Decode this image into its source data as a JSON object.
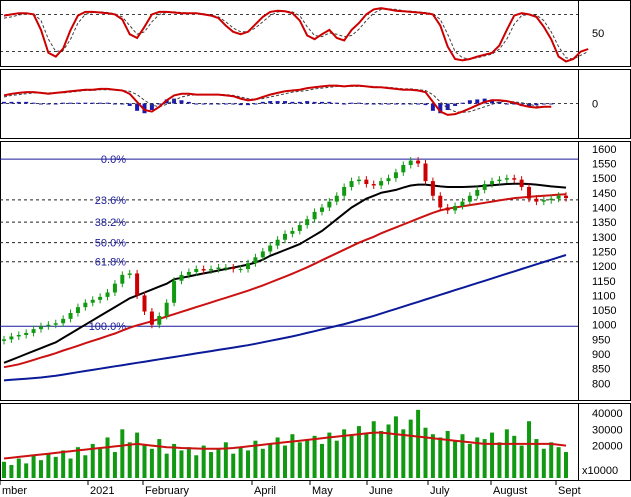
{
  "colors": {
    "background": "#ffffff",
    "grid": "#000000",
    "stoch_line": "#cc0000",
    "stoch_signal": "#404040",
    "macd_line": "#cc0000",
    "macd_hist": "#1a1ab0",
    "candle_up": "#119911",
    "candle_down": "#cc0000",
    "ma_short": "#000000",
    "ma_mid": "#cc1111",
    "ma_long": "#0a1a99",
    "fib": "#1a1a9a",
    "volume_bar": "#119911",
    "volume_ma": "#cc1111"
  },
  "chart_data": {
    "type": "line",
    "panels": {
      "stochastic": {
        "ticks": [
          50
        ],
        "levels": [
          20,
          80
        ],
        "ylim": [
          0,
          100
        ],
        "k": [
          78,
          80,
          82,
          82,
          80,
          55,
          18,
          12,
          25,
          55,
          78,
          84,
          84,
          83,
          82,
          80,
          72,
          48,
          42,
          60,
          80,
          84,
          84,
          83,
          82,
          82,
          82,
          80,
          78,
          74,
          62,
          52,
          48,
          52,
          64,
          76,
          84,
          86,
          85,
          82,
          70,
          46,
          40,
          48,
          55,
          42,
          38,
          55,
          66,
          80,
          88,
          90,
          88,
          86,
          85,
          84,
          83,
          82,
          80,
          62,
          28,
          8,
          6,
          8,
          12,
          15,
          18,
          30,
          55,
          78,
          82,
          80,
          76,
          60,
          40,
          12,
          4,
          8,
          20,
          24
        ],
        "d": [
          74,
          76,
          79,
          81,
          81,
          70,
          40,
          20,
          22,
          40,
          66,
          80,
          83,
          84,
          83,
          81,
          76,
          62,
          48,
          52,
          68,
          80,
          83,
          84,
          83,
          82,
          82,
          81,
          79,
          76,
          68,
          58,
          52,
          52,
          58,
          68,
          78,
          84,
          85,
          84,
          78,
          60,
          46,
          44,
          50,
          48,
          44,
          46,
          56,
          70,
          82,
          88,
          89,
          88,
          86,
          85,
          84,
          83,
          81,
          72,
          48,
          20,
          10,
          8,
          10,
          13,
          16,
          24,
          40,
          64,
          78,
          80,
          79,
          70,
          52,
          28,
          10,
          8,
          14,
          20
        ]
      },
      "macd": {
        "ticks": [
          0
        ],
        "ylim": [
          -40,
          40
        ],
        "line": [
          10,
          12,
          13,
          14,
          14,
          13,
          12,
          13,
          14,
          15,
          16,
          17,
          17,
          18,
          18,
          17,
          16,
          12,
          2,
          -8,
          -10,
          -4,
          4,
          10,
          12,
          12,
          11,
          11,
          11,
          11,
          10,
          9,
          6,
          4,
          5,
          8,
          11,
          13,
          15,
          16,
          17,
          19,
          20,
          21,
          22,
          22,
          21,
          22,
          22,
          21,
          20,
          20,
          19,
          18,
          17,
          17,
          16,
          14,
          2,
          -10,
          -14,
          -13,
          -10,
          -6,
          -2,
          2,
          4,
          4,
          3,
          1,
          -2,
          -4,
          -5,
          -4,
          -4
        ],
        "signal": [
          8,
          10,
          11,
          12,
          13,
          13,
          13,
          13,
          13,
          14,
          15,
          16,
          16,
          17,
          17,
          17,
          16,
          15,
          11,
          4,
          -2,
          -4,
          -1,
          4,
          8,
          10,
          11,
          11,
          11,
          11,
          11,
          10,
          8,
          6,
          5,
          6,
          8,
          10,
          12,
          14,
          15,
          16,
          18,
          19,
          20,
          21,
          21,
          21,
          21,
          21,
          21,
          20,
          20,
          19,
          18,
          18,
          17,
          16,
          11,
          2,
          -6,
          -10,
          -11,
          -10,
          -7,
          -4,
          -1,
          2,
          3,
          2,
          1,
          -1,
          -3,
          -4,
          -4
        ],
        "hist": [
          2,
          2,
          2,
          2,
          1,
          0,
          -1,
          0,
          1,
          1,
          1,
          1,
          1,
          1,
          1,
          0,
          0,
          -3,
          -9,
          -12,
          -8,
          0,
          5,
          6,
          4,
          2,
          0,
          0,
          0,
          0,
          -1,
          -1,
          -2,
          -2,
          0,
          2,
          3,
          3,
          3,
          2,
          2,
          3,
          2,
          2,
          2,
          1,
          0,
          1,
          1,
          0,
          -1,
          0,
          -1,
          -1,
          -1,
          -1,
          -1,
          -2,
          -9,
          -12,
          -8,
          -3,
          1,
          4,
          5,
          6,
          5,
          2,
          0,
          -1,
          -3,
          -3,
          -2,
          0,
          0
        ]
      },
      "price": {
        "ylim": [
          750,
          1620
        ],
        "ticks": [
          800,
          850,
          900,
          950,
          1000,
          1050,
          1100,
          1150,
          1200,
          1250,
          1300,
          1350,
          1400,
          1450,
          1500,
          1550,
          1600
        ],
        "fib_levels": [
          {
            "label": "0.0%",
            "value": 1565,
            "style": "solid"
          },
          {
            "label": "23.6%",
            "value": 1426,
            "style": "dashed"
          },
          {
            "label": "38.2%",
            "value": 1350,
            "style": "dashed"
          },
          {
            "label": "50.0%",
            "value": 1280,
            "style": "dashed"
          },
          {
            "label": "61.8%",
            "value": 1215,
            "style": "dashed"
          },
          {
            "label": "100.0%",
            "value": 995,
            "style": "solid"
          }
        ],
        "close": [
          950,
          960,
          965,
          972,
          985,
          995,
          1000,
          1005,
          1020,
          1040,
          1060,
          1075,
          1085,
          1095,
          1110,
          1140,
          1170,
          1175,
          1100,
          1045,
          1000,
          1030,
          1075,
          1150,
          1170,
          1180,
          1190,
          1185,
          1190,
          1195,
          1195,
          1190,
          1190,
          1210,
          1230,
          1250,
          1270,
          1290,
          1310,
          1320,
          1340,
          1360,
          1385,
          1400,
          1420,
          1440,
          1470,
          1490,
          1495,
          1480,
          1475,
          1490,
          1500,
          1520,
          1545,
          1560,
          1550,
          1490,
          1440,
          1400,
          1390,
          1405,
          1420,
          1440,
          1460,
          1480,
          1490,
          1495,
          1500,
          1495,
          1470,
          1430,
          1420,
          1425,
          1430,
          1440,
          1432
        ],
        "ma_short": [
          870,
          880,
          890,
          900,
          910,
          920,
          930,
          940,
          955,
          970,
          985,
          1000,
          1015,
          1030,
          1045,
          1060,
          1075,
          1090,
          1100,
          1110,
          1120,
          1130,
          1140,
          1155,
          1160,
          1165,
          1170,
          1175,
          1180,
          1185,
          1190,
          1195,
          1200,
          1205,
          1212,
          1222,
          1235,
          1245,
          1255,
          1265,
          1275,
          1290,
          1305,
          1320,
          1340,
          1360,
          1380,
          1400,
          1415,
          1430,
          1440,
          1450,
          1455,
          1460,
          1468,
          1475,
          1478,
          1478,
          1475,
          1472,
          1470,
          1470,
          1470,
          1471,
          1472,
          1474,
          1476,
          1478,
          1480,
          1481,
          1481,
          1480,
          1478,
          1475,
          1472,
          1470,
          1468
        ],
        "ma_mid": [
          855,
          860,
          865,
          872,
          880,
          888,
          895,
          903,
          912,
          920,
          928,
          937,
          945,
          953,
          962,
          970,
          980,
          990,
          998,
          1005,
          1012,
          1020,
          1028,
          1036,
          1044,
          1052,
          1060,
          1068,
          1076,
          1084,
          1092,
          1100,
          1108,
          1116,
          1125,
          1134,
          1144,
          1154,
          1164,
          1174,
          1185,
          1196,
          1208,
          1220,
          1232,
          1244,
          1256,
          1268,
          1280,
          1290,
          1300,
          1312,
          1322,
          1332,
          1342,
          1352,
          1362,
          1372,
          1382,
          1390,
          1396,
          1400,
          1404,
          1408,
          1412,
          1416,
          1420,
          1424,
          1428,
          1432,
          1434,
          1436,
          1438,
          1440,
          1442,
          1444,
          1445
        ],
        "ma_long": [
          810,
          812,
          814,
          816,
          818,
          820,
          823,
          826,
          830,
          834,
          838,
          842,
          846,
          850,
          854,
          858,
          862,
          866,
          870,
          874,
          878,
          882,
          886,
          890,
          894,
          898,
          902,
          906,
          910,
          914,
          918,
          922,
          926,
          930,
          935,
          940,
          945,
          950,
          955,
          960,
          966,
          972,
          978,
          984,
          990,
          996,
          1002,
          1009,
          1016,
          1023,
          1030,
          1038,
          1046,
          1054,
          1062,
          1070,
          1078,
          1086,
          1094,
          1102,
          1110,
          1118,
          1126,
          1134,
          1142,
          1150,
          1158,
          1166,
          1174,
          1182,
          1190,
          1198,
          1206,
          1214,
          1222,
          1230,
          1238
        ]
      },
      "volume": {
        "ylim": [
          0,
          45000
        ],
        "ticks": [
          20000,
          30000,
          40000
        ],
        "unit_label": "x10000",
        "values": [
          10000,
          8000,
          12000,
          9000,
          14000,
          11000,
          15000,
          13000,
          17000,
          12000,
          19000,
          14000,
          21000,
          18000,
          25000,
          16000,
          30000,
          22000,
          28000,
          20000,
          18000,
          24000,
          15000,
          21000,
          17000,
          19000,
          14000,
          20000,
          16000,
          18000,
          22000,
          15000,
          19000,
          17000,
          23000,
          18000,
          21000,
          25000,
          20000,
          27000,
          22000,
          24000,
          26000,
          21000,
          28000,
          23000,
          30000,
          26000,
          32000,
          28000,
          35000,
          29000,
          33000,
          38000,
          30000,
          36000,
          42000,
          31000,
          27000,
          25000,
          29000,
          23000,
          27000,
          21000,
          25000,
          24000,
          28000,
          22000,
          30000,
          26000,
          20000,
          35000,
          24000,
          18000,
          22000,
          19000,
          16000
        ],
        "ma": [
          12000,
          12500,
          13000,
          13500,
          14000,
          14500,
          15000,
          15500,
          16000,
          16500,
          17000,
          17500,
          18000,
          18500,
          19000,
          19500,
          20000,
          20500,
          21000,
          20500,
          20000,
          19500,
          19000,
          18800,
          18500,
          18300,
          18200,
          18000,
          18000,
          18000,
          18200,
          18500,
          19000,
          19500,
          20000,
          20500,
          21000,
          21500,
          22000,
          22500,
          23000,
          23500,
          24000,
          24500,
          25000,
          25500,
          26000,
          26500,
          27000,
          27500,
          28000,
          28000,
          27500,
          27000,
          26500,
          26000,
          25500,
          25000,
          24500,
          24000,
          23500,
          23000,
          22500,
          22000,
          21500,
          21000,
          21000,
          21000,
          21000,
          21000,
          21000,
          21000,
          21000,
          21000,
          21000,
          20500,
          20000
        ]
      }
    },
    "x_axis": {
      "labels": [
        "mber",
        "2021",
        "February",
        "April",
        "May",
        "June",
        "July",
        "August",
        "Sept"
      ]
    }
  }
}
